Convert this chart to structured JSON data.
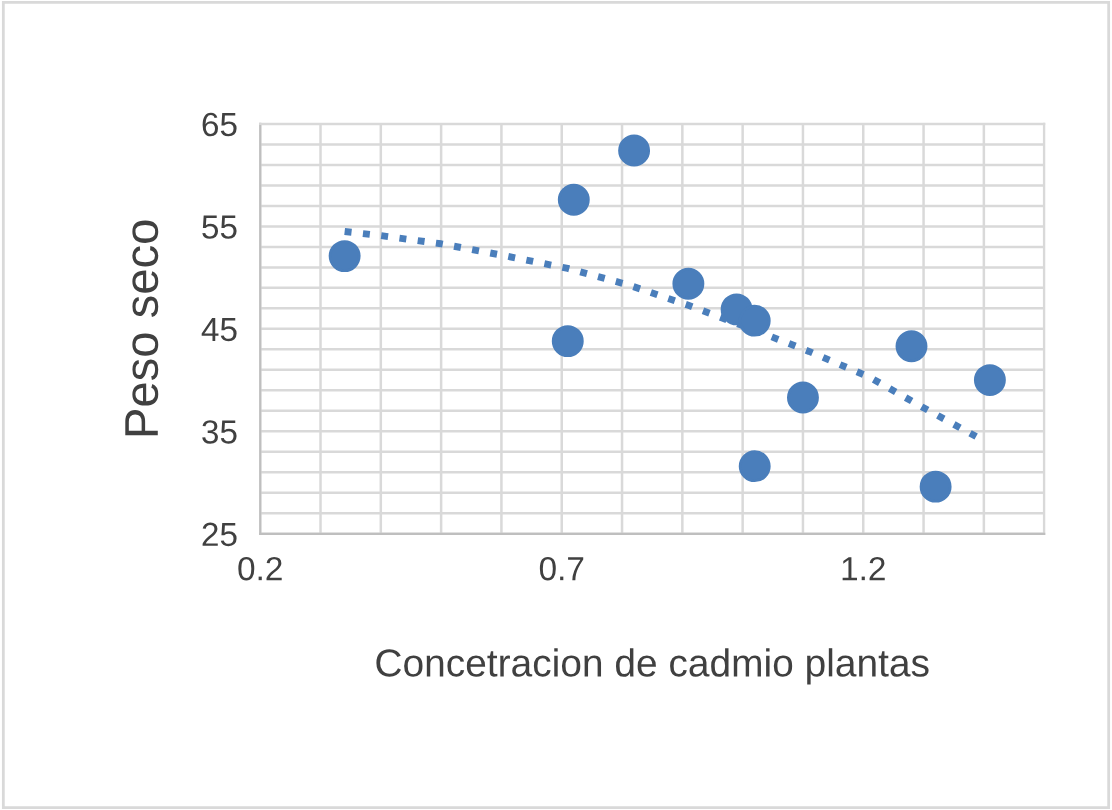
{
  "chart_data": {
    "type": "scatter",
    "xlabel": "Concetracion de cadmio plantas",
    "ylabel": "Peso seco",
    "xlim": [
      0.2,
      1.5
    ],
    "xticks": [
      0.2,
      {
        "value": 0.3,
        "label": null
      },
      {
        "value": 0.4,
        "label": null
      },
      {
        "value": 0.5,
        "label": null
      },
      {
        "value": 0.6,
        "label": null
      },
      0.7,
      {
        "value": 0.8,
        "label": null
      },
      {
        "value": 0.9,
        "label": null
      },
      {
        "value": 1.0,
        "label": null
      },
      {
        "value": 1.1,
        "label": null
      },
      1.2,
      {
        "value": 1.3,
        "label": null
      },
      {
        "value": 1.4,
        "label": null
      },
      {
        "value": 1.5,
        "label": null
      }
    ],
    "ylim": [
      25,
      65
    ],
    "yticks": [
      25,
      {
        "value": 27,
        "label": null
      },
      {
        "value": 29,
        "label": null
      },
      {
        "value": 31,
        "label": null
      },
      {
        "value": 33,
        "label": null
      },
      35,
      {
        "value": 37,
        "label": null
      },
      {
        "value": 39,
        "label": null
      },
      {
        "value": 41,
        "label": null
      },
      {
        "value": 43,
        "label": null
      },
      45,
      {
        "value": 47,
        "label": null
      },
      {
        "value": 49,
        "label": null
      },
      {
        "value": 51,
        "label": null
      },
      {
        "value": 53,
        "label": null
      },
      55,
      {
        "value": 57,
        "label": null
      },
      {
        "value": 59,
        "label": null
      },
      {
        "value": 61,
        "label": null
      },
      {
        "value": 63,
        "label": null
      },
      65
    ],
    "grid": true,
    "series": [
      {
        "color": "#4a7ebb",
        "marker": "circle",
        "x": [
          0.34,
          0.72,
          0.82,
          0.71,
          0.91,
          0.99,
          1.02,
          1.1,
          1.02,
          1.28,
          1.32,
          1.41
        ],
        "values": [
          52.1,
          57.6,
          62.4,
          43.8,
          49.4,
          46.9,
          45.8,
          38.3,
          31.6,
          43.3,
          29.6,
          40.0
        ]
      },
      {
        "type": "line",
        "color": "#4a7ebb",
        "marker": "none",
        "line_style": "dotted",
        "x": [
          0.34,
          0.4,
          0.5,
          0.6,
          0.71,
          0.81,
          0.91,
          1.01,
          1.11,
          1.21,
          1.3,
          1.39
        ],
        "values": [
          54.5,
          54.1,
          53.3,
          52.2,
          50.9,
          49.3,
          47.3,
          45.1,
          42.8,
          40.3,
          37.3,
          34.4
        ]
      }
    ]
  }
}
